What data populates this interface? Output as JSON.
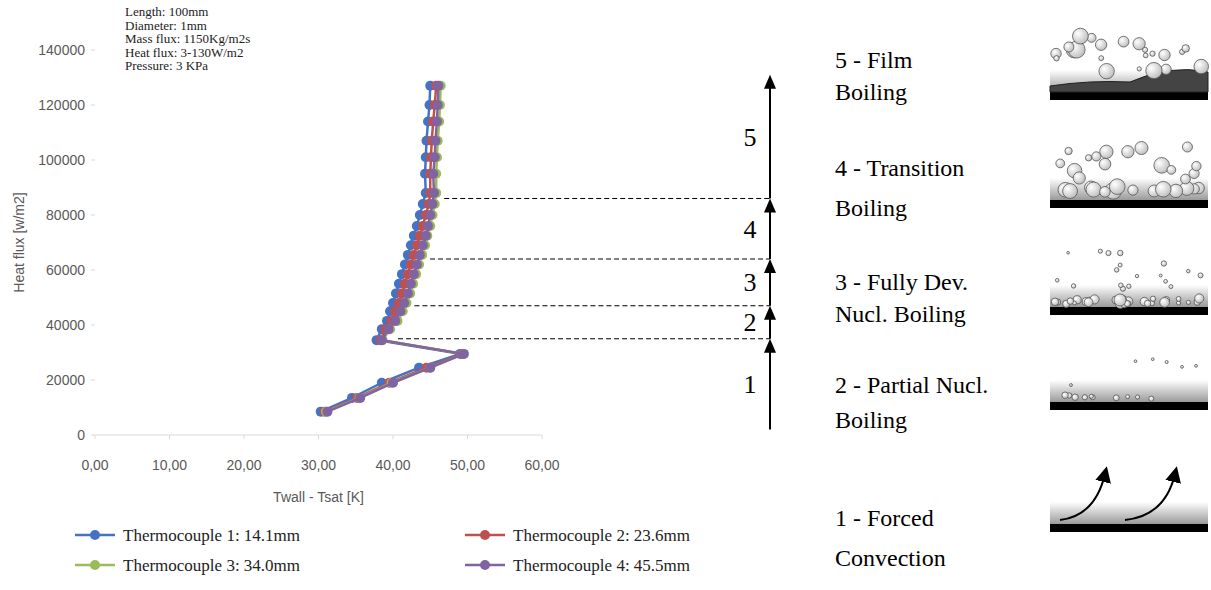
{
  "chart_data": {
    "type": "line",
    "x_label": "Twall - Tsat [K]",
    "y_label": "Heat flux [w/m2]",
    "annotation": [
      "Length: 100mm",
      "Diameter: 1mm",
      "Mass flux: 1150Kg/m2s",
      "Heat flux: 3-130W/m2",
      "Pressure: 3 KPa"
    ],
    "xlim": [
      0,
      60
    ],
    "xticks": [
      {
        "value": 0,
        "label": "0,00"
      },
      {
        "value": 10,
        "label": "10,00"
      },
      {
        "value": 20,
        "label": "20,00"
      },
      {
        "value": 30,
        "label": "30,00"
      },
      {
        "value": 40,
        "label": "40,00"
      },
      {
        "value": 50,
        "label": "50,00"
      },
      {
        "value": 60,
        "label": "60,00"
      }
    ],
    "ylim": [
      0,
      140000
    ],
    "yticks": [
      0,
      20000,
      40000,
      60000,
      80000,
      100000,
      120000,
      140000
    ],
    "grid": false,
    "legend": "bottom",
    "marker": "circle",
    "series": [
      {
        "name": "Thermocouple 1: 14.1mm",
        "color": "#4472c4",
        "x": [
          30.3,
          34.5,
          38.5,
          43.5,
          49.0,
          37.8,
          38.5,
          39.2,
          39.6,
          40.0,
          40.4,
          40.8,
          41.2,
          41.6,
          42.0,
          42.4,
          42.8,
          43.2,
          43.6,
          44.0,
          44.4,
          44.3,
          44.4,
          44.5,
          44.7,
          44.9,
          45.0
        ],
        "values": [
          8500,
          13500,
          19000,
          24500,
          29500,
          34500,
          38500,
          41500,
          45000,
          48000,
          51500,
          55000,
          58500,
          62000,
          65500,
          69000,
          72500,
          76000,
          80000,
          84000,
          88000,
          95000,
          101000,
          107000,
          114000,
          120000,
          127000
        ]
      },
      {
        "name": "Thermocouple 2: 23.6mm",
        "color": "#c0504d",
        "x": [
          30.8,
          35.2,
          39.5,
          44.5,
          49.3,
          38.3,
          39.0,
          39.8,
          40.3,
          40.8,
          41.2,
          41.6,
          42.0,
          42.4,
          42.8,
          43.2,
          43.6,
          44.0,
          44.4,
          44.8,
          45.0,
          45.0,
          45.1,
          45.2,
          45.4,
          45.6,
          45.8
        ],
        "values": [
          8500,
          13500,
          19000,
          24500,
          29500,
          34500,
          38500,
          41500,
          45000,
          48000,
          51500,
          55000,
          58500,
          62000,
          65500,
          69000,
          72500,
          76000,
          80000,
          84000,
          88000,
          95000,
          101000,
          107000,
          114000,
          120000,
          127000
        ]
      },
      {
        "name": "Thermocouple 3: 34.0mm",
        "color": "#9bbb59",
        "x": [
          31.0,
          35.5,
          39.8,
          45.0,
          49.5,
          38.6,
          39.6,
          40.6,
          41.3,
          41.8,
          42.3,
          42.7,
          43.1,
          43.5,
          43.9,
          44.3,
          44.6,
          45.0,
          45.3,
          45.6,
          45.8,
          45.8,
          45.9,
          46.0,
          46.2,
          46.3,
          46.4
        ],
        "values": [
          8500,
          13500,
          19000,
          24500,
          29500,
          34500,
          38500,
          41500,
          45000,
          48000,
          51500,
          55000,
          58500,
          62000,
          65500,
          69000,
          72500,
          76000,
          80000,
          84000,
          88000,
          95000,
          101000,
          107000,
          114000,
          120000,
          127000
        ]
      },
      {
        "name": "Thermocouple 4: 45.5mm",
        "color": "#8064a2",
        "x": [
          31.2,
          35.6,
          40.0,
          45.0,
          49.5,
          38.5,
          39.4,
          40.3,
          41.0,
          41.5,
          42.0,
          42.4,
          42.8,
          43.2,
          43.6,
          44.0,
          44.4,
          44.7,
          45.0,
          45.3,
          45.5,
          45.4,
          45.6,
          45.7,
          45.9,
          46.0,
          46.1
        ],
        "values": [
          8500,
          13500,
          19000,
          24500,
          29500,
          34500,
          38500,
          41500,
          45000,
          48000,
          51500,
          55000,
          58500,
          62000,
          65500,
          69000,
          72500,
          76000,
          80000,
          84000,
          88000,
          95000,
          101000,
          107000,
          114000,
          120000,
          127000
        ]
      }
    ],
    "regions": [
      {
        "number": 1,
        "label": [
          "1 - Forced",
          "Convection"
        ],
        "from": 2000,
        "to": 35000
      },
      {
        "number": 2,
        "label": [
          "2 - Partial Nucl.",
          "Boiling"
        ],
        "from": 35000,
        "to": 47000
      },
      {
        "number": 3,
        "label": [
          "3 - Fully Dev.",
          "Nucl. Boiling"
        ],
        "from": 47000,
        "to": 64000
      },
      {
        "number": 4,
        "label": [
          "4 - Transition",
          "Boiling"
        ],
        "from": 64000,
        "to": 86000
      },
      {
        "number": 5,
        "label": [
          "5 - Film",
          "Boiling"
        ],
        "from": 86000,
        "to": 131000
      }
    ]
  }
}
